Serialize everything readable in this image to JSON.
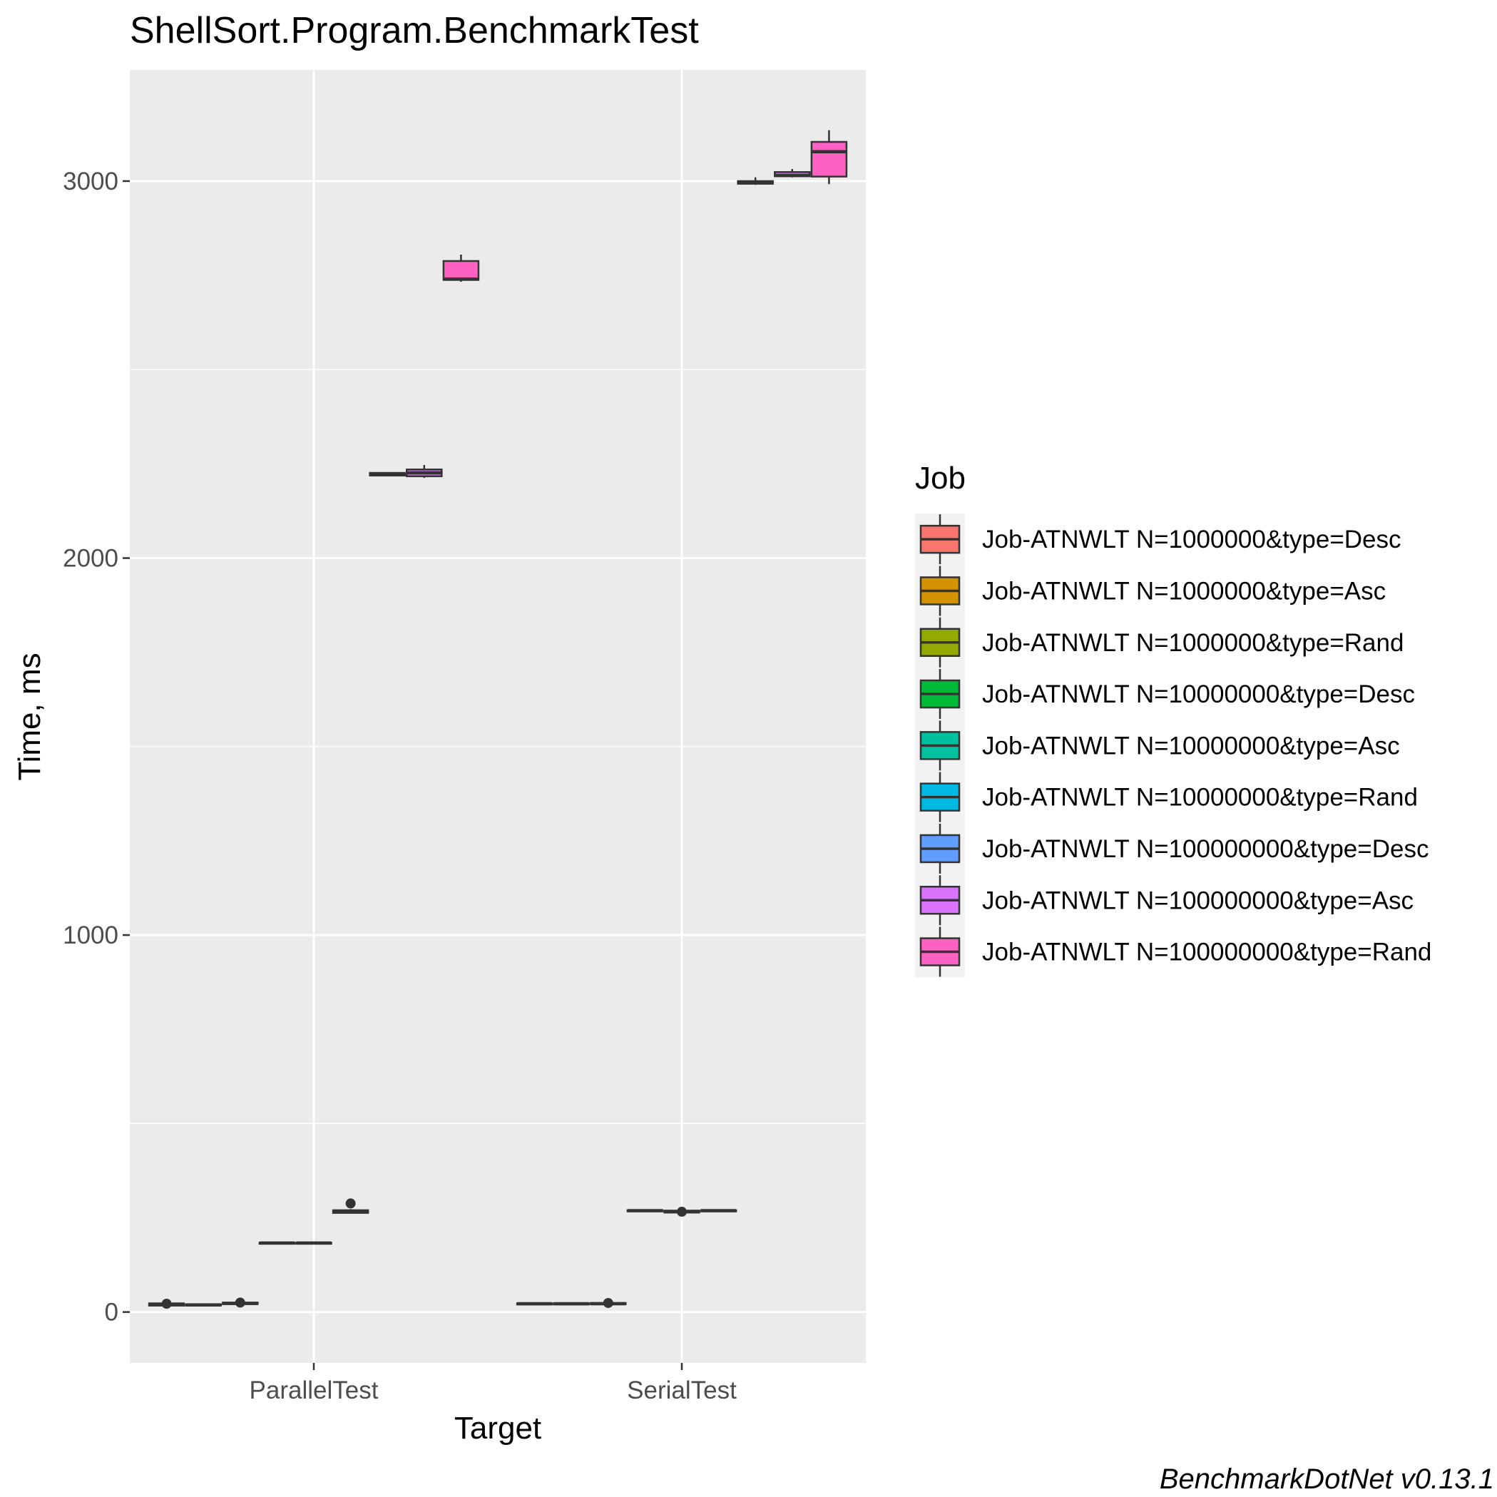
{
  "chart_data": {
    "type": "box",
    "title": "ShellSort.Program.BenchmarkTest",
    "xlabel": "Target",
    "ylabel": "Time, ms",
    "caption": "BenchmarkDotNet v0.13.1",
    "categories": [
      "ParallelTest",
      "SerialTest"
    ],
    "ylim": [
      -135,
      3295
    ],
    "yticks": [
      0,
      1000,
      2000,
      3000
    ],
    "ytick_labels": [
      "0",
      "1000",
      "2000",
      "3000"
    ],
    "grid": true,
    "background": "#EBEBEB",
    "legend": {
      "title": "Job",
      "placement": "right",
      "entries": [
        "Job-ATNWLT N=1000000&type=Desc",
        "Job-ATNWLT N=1000000&type=Asc",
        "Job-ATNWLT N=1000000&type=Rand",
        "Job-ATNWLT N=10000000&type=Desc",
        "Job-ATNWLT N=10000000&type=Asc",
        "Job-ATNWLT N=10000000&type=Rand",
        "Job-ATNWLT N=100000000&type=Desc",
        "Job-ATNWLT N=100000000&type=Asc",
        "Job-ATNWLT N=100000000&type=Rand"
      ]
    },
    "series": [
      {
        "name": "Job-ATNWLT N=1000000&type=Desc",
        "color": "#F8766D",
        "values": [
          {
            "min": 15,
            "q1": 17,
            "median": 20,
            "q3": 23,
            "max": 26,
            "outliers": [
              22
            ]
          },
          {
            "min": 20,
            "q1": 21,
            "median": 22,
            "q3": 23,
            "max": 25,
            "outliers": []
          }
        ]
      },
      {
        "name": "Job-ATNWLT N=1000000&type=Asc",
        "color": "#D39200",
        "values": [
          {
            "min": 16,
            "q1": 18,
            "median": 19,
            "q3": 20,
            "max": 21,
            "outliers": []
          },
          {
            "min": 19,
            "q1": 21,
            "median": 22,
            "q3": 23,
            "max": 24,
            "outliers": []
          }
        ]
      },
      {
        "name": "Job-ATNWLT N=1000000&type=Rand",
        "color": "#93AA00",
        "values": [
          {
            "min": 18,
            "q1": 21,
            "median": 23,
            "q3": 25,
            "max": 28,
            "outliers": [
              25
            ]
          },
          {
            "min": 19,
            "q1": 21,
            "median": 22,
            "q3": 24,
            "max": 26,
            "outliers": [
              24
            ]
          }
        ]
      },
      {
        "name": "Job-ATNWLT N=10000000&type=Desc",
        "color": "#00BA38",
        "values": [
          {
            "min": 180,
            "q1": 182,
            "median": 183,
            "q3": 184,
            "max": 186,
            "outliers": []
          },
          {
            "min": 266,
            "q1": 268,
            "median": 269,
            "q3": 270,
            "max": 272,
            "outliers": []
          }
        ]
      },
      {
        "name": "Job-ATNWLT N=10000000&type=Asc",
        "color": "#00C19F",
        "values": [
          {
            "min": 180,
            "q1": 182,
            "median": 183,
            "q3": 184,
            "max": 185,
            "outliers": []
          },
          {
            "min": 261,
            "q1": 264,
            "median": 266,
            "q3": 269,
            "max": 272,
            "outliers": [
              266
            ]
          }
        ]
      },
      {
        "name": "Job-ATNWLT N=10000000&type=Rand",
        "color": "#00B9E3",
        "values": [
          {
            "min": 261,
            "q1": 263,
            "median": 266,
            "q3": 270,
            "max": 273,
            "outliers": [
              288
            ]
          },
          {
            "min": 266,
            "q1": 268,
            "median": 269,
            "q3": 270,
            "max": 272,
            "outliers": []
          }
        ]
      },
      {
        "name": "Job-ATNWLT N=100000000&type=Desc",
        "color": "#619CFF",
        "values": [
          {
            "min": 2217,
            "q1": 2219,
            "median": 2222,
            "q3": 2226,
            "max": 2228,
            "outliers": []
          },
          {
            "min": 2990,
            "q1": 2993,
            "median": 2996,
            "q3": 3000,
            "max": 3010,
            "outliers": []
          }
        ]
      },
      {
        "name": "Job-ATNWLT N=100000000&type=Asc",
        "color": "#DB72FB",
        "values": [
          {
            "min": 2213,
            "q1": 2217,
            "median": 2226,
            "q3": 2235,
            "max": 2247,
            "outliers": []
          },
          {
            "min": 3010,
            "q1": 3013,
            "median": 3015,
            "q3": 3024,
            "max": 3032,
            "outliers": []
          }
        ]
      },
      {
        "name": "Job-ATNWLT N=100000000&type=Rand",
        "color": "#FF61C3",
        "values": [
          {
            "min": 2733,
            "q1": 2738,
            "median": 2740,
            "q3": 2788,
            "max": 2805,
            "outliers": []
          },
          {
            "min": 2992,
            "q1": 3012,
            "median": 3078,
            "q3": 3104,
            "max": 3135,
            "outliers": []
          }
        ]
      }
    ]
  }
}
